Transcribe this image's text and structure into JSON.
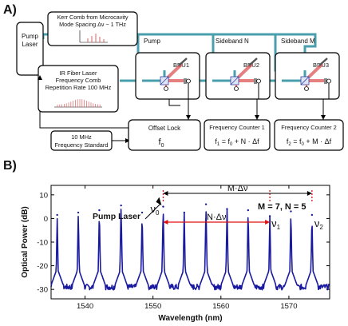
{
  "panel_a": {
    "letter": "A)",
    "pump_laser": [
      "Pump",
      "Laser"
    ],
    "kerr_comb": [
      "Kerr Comb from Microcavity",
      "Mode Spacing  Δν ~ 1 THz"
    ],
    "ir_comb": [
      "IR Fiber Laser",
      "Frequency Comb",
      "Repetition Rate 100 MHz"
    ],
    "standard": [
      "10 MHz",
      "Frequency Standard"
    ],
    "beams": {
      "pump": "Pump",
      "sideband_n": "Sideband N",
      "sideband_m": "Sideband M"
    },
    "bdu": [
      "BDU1",
      "BDU2",
      "BDU3"
    ],
    "offset_lock": {
      "title": "Offset Lock",
      "symbol": "f",
      "sub": "0"
    },
    "counter1": {
      "title": "Frequency Counter 1",
      "f": "f",
      "f_sub": "1",
      "eq": " = f",
      "eq_sub": "0",
      "rest": " + N · Δf"
    },
    "counter2": {
      "title": "Frequency Counter 2",
      "f": "f",
      "f_sub": "2",
      "eq": " = f",
      "eq_sub": "0",
      "rest": " + M · Δf"
    },
    "colors": {
      "beam": "#4a9fac",
      "laser": "#e06060",
      "box": "#000000"
    }
  },
  "panel_b": {
    "letter": "B)",
    "annotations": {
      "m_dnu": "M·Δν",
      "n_dnu": "N·Δν",
      "mn": "M = 7, N = 5",
      "pump_laser": "Pump Laser",
      "nu": "ν",
      "nu0": "0",
      "nu1": "1",
      "nu2": "2"
    },
    "chart_data": {
      "type": "line",
      "xlabel": "Wavelength (nm)",
      "ylabel": "Optical Power (dB)",
      "xlim": [
        1535,
        1576
      ],
      "ylim": [
        -34,
        14
      ],
      "xticks": [
        1540,
        1550,
        1560,
        1570
      ],
      "yticks": [
        -30,
        -20,
        -10,
        0,
        10
      ],
      "peak_spacing_nm": 3.13,
      "peaks": [
        {
          "x": 1535.9,
          "y": 1.5
        },
        {
          "x": 1539.0,
          "y": 2.5
        },
        {
          "x": 1542.1,
          "y": 3.5
        },
        {
          "x": 1545.3,
          "y": 5.5
        },
        {
          "x": 1548.4,
          "y": 2.5
        },
        {
          "x": 1551.5,
          "y": 5.0
        },
        {
          "x": 1554.6,
          "y": 2.5
        },
        {
          "x": 1557.8,
          "y": 6.0
        },
        {
          "x": 1560.9,
          "y": 4.0
        },
        {
          "x": 1564.0,
          "y": 3.5
        },
        {
          "x": 1567.2,
          "y": 1.0
        },
        {
          "x": 1570.3,
          "y": 3.0
        },
        {
          "x": 1573.4,
          "y": 1.5
        }
      ],
      "baseline_db": -29,
      "line_color": "#1a1aa0",
      "grid": false,
      "markers": {
        "nu0": 1551.5,
        "nu1": 1567.2,
        "nu2": 1573.4
      }
    }
  }
}
